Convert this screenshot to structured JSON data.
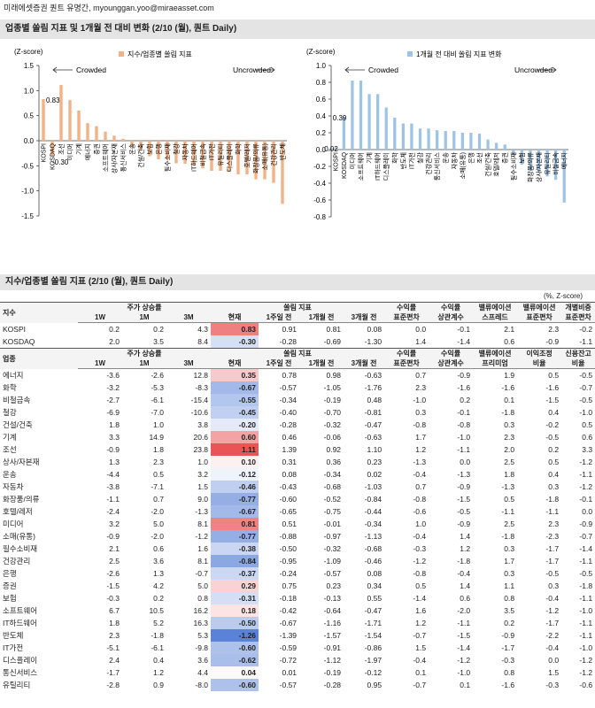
{
  "header": {
    "text": "미래에셋증권 퀀트 유명간, myounggan.yoo@miraeasset.com"
  },
  "sections": [
    {
      "title": "업종별 쏠림 지표 및 1개월 전 대비 변화 (2/10 (월), 퀀트 Daily)"
    },
    {
      "title": "지수/업종별 쏠림 지표 (2/10 (월), 퀀트 Daily)",
      "note": "(%, Z-score)"
    }
  ],
  "chart_data": [
    {
      "type": "bar",
      "ylabel": "(Z-score)",
      "legend": "지수/업종별 쏠림 지표",
      "annotations": [
        "Crowded",
        "Uncrowded"
      ],
      "categories": [
        "KOSPI",
        "KOSDAQ",
        "조선",
        "미디어",
        "기계",
        "에너지",
        "증권",
        "소프트웨어",
        "상사/자본재",
        "통신서비스",
        "운송",
        "건설/건축",
        "보험",
        "은행",
        "필수소비재",
        "철강",
        "자동차",
        "IT하드웨어",
        "비철금속",
        "IT가전",
        "유틸리티",
        "디스플레이",
        "화학",
        "호텔/레저",
        "화장품/의류",
        "소매(유통)",
        "건강관리",
        "반도체"
      ],
      "values": [
        0.83,
        -0.3,
        1.11,
        0.81,
        0.6,
        0.35,
        0.29,
        0.18,
        0.1,
        0.04,
        -0.12,
        -0.2,
        -0.31,
        -0.37,
        -0.38,
        -0.45,
        -0.46,
        -0.5,
        -0.55,
        -0.6,
        -0.6,
        -0.62,
        -0.67,
        -0.67,
        -0.77,
        -0.77,
        -0.84,
        -1.26
      ],
      "value_labels": [
        "0.83",
        "-0.30",
        null,
        null,
        null,
        null,
        null,
        null,
        null,
        null,
        null,
        null,
        null,
        null,
        null,
        null,
        null,
        null,
        null,
        null,
        null,
        null,
        null,
        null,
        null,
        null,
        null,
        null
      ],
      "color": "#f4b183",
      "ylim": [
        -1.5,
        1.5
      ],
      "yticks": [
        1.5,
        {
          "value": 1.0,
          "label": "1.0"
        },
        0.5,
        {
          "value": 0.0,
          "label": "0.0"
        },
        -0.5,
        {
          "value": -1.0,
          "label": "-1.0"
        },
        -1.5
      ]
    },
    {
      "type": "bar",
      "ylabel": "(Z-score)",
      "legend": "1개월 전 대비 쏠림 지표 변화",
      "annotations": [
        "Crowded",
        "Uncrowded"
      ],
      "categories": [
        "KOSPI",
        "KOSDAQ",
        "미디어",
        "소프트웨어",
        "기계",
        "IT하드웨어",
        "디스플레이",
        "화학",
        "반도체",
        "IT가전",
        "철강",
        "건강관리",
        "통신서비스",
        "운송",
        "자동차",
        "소매(유통)",
        "은행",
        "조선",
        "건설/건축",
        "호텔/레저",
        "증권",
        "필수소비재",
        "보험",
        "화장품/의류",
        "상사/자본재",
        "유틸리티",
        "비철금속",
        "에너지"
      ],
      "values": [
        0.02,
        0.39,
        0.82,
        0.82,
        0.66,
        0.66,
        0.5,
        0.38,
        0.31,
        0.31,
        0.25,
        0.25,
        0.23,
        0.22,
        0.22,
        0.2,
        0.2,
        0.19,
        0.12,
        0.08,
        0.06,
        -0.06,
        -0.18,
        -0.25,
        -0.26,
        -0.32,
        -0.36,
        -0.63
      ],
      "value_labels": [
        "0.02",
        "0.39",
        null,
        null,
        null,
        null,
        null,
        null,
        null,
        null,
        null,
        null,
        null,
        null,
        null,
        null,
        null,
        null,
        null,
        null,
        null,
        null,
        null,
        null,
        null,
        null,
        null,
        null
      ],
      "color": "#9dc3e6",
      "ylim": [
        -0.8,
        1.0
      ],
      "yticks": [
        {
          "value": 1.0,
          "label": "1.0"
        },
        0.8,
        0.6,
        0.4,
        0.2,
        {
          "value": 0.0,
          "label": "0.0"
        },
        -0.2,
        -0.4,
        -0.6,
        -0.8
      ]
    }
  ],
  "table": {
    "index_header": {
      "label": "지수",
      "groups": [
        {
          "title": "주가 상승률",
          "cols": [
            "1W",
            "1M",
            "3M"
          ]
        },
        {
          "title": "쏠림 지표",
          "cols": [
            "현재",
            "1주일 전",
            "1개월 전",
            "3개월 전"
          ]
        }
      ],
      "extra": [
        [
          "수익률",
          "표준편차"
        ],
        [
          "수익률",
          "상관계수"
        ],
        [
          "밸류에이션",
          "스프레드"
        ],
        [
          "밸류에이션",
          "표준편차"
        ],
        [
          "개별비중",
          "표준편차"
        ]
      ]
    },
    "index_rows": [
      [
        "KOSPI",
        "0.2",
        "0.2",
        "4.3",
        "0.83",
        "0.91",
        "0.81",
        "0.08",
        "0.0",
        "-0.1",
        "2.1",
        "2.3",
        "-0.2"
      ],
      [
        "KOSDAQ",
        "2.0",
        "3.5",
        "8.4",
        "-0.30",
        "-0.28",
        "-0.69",
        "-1.30",
        "1.4",
        "-1.4",
        "0.6",
        "-0.9",
        "-1.1"
      ]
    ],
    "sector_header": {
      "label": "업종",
      "groups": [
        {
          "title": "주가 상승률",
          "cols": [
            "1W",
            "1M",
            "3M"
          ]
        },
        {
          "title": "쏠림 지표",
          "cols": [
            "현재",
            "1주일 전",
            "1개월 전",
            "3개월 전"
          ]
        }
      ],
      "extra": [
        [
          "수익률",
          "표준편차"
        ],
        [
          "수익률",
          "상관계수"
        ],
        [
          "밸류에이션",
          "프리미엄"
        ],
        [
          "이익조정",
          "비율"
        ],
        [
          "신용잔고",
          "비율"
        ]
      ]
    },
    "sector_rows": [
      [
        "에너지",
        "-3.6",
        "-2.6",
        "12.8",
        "0.35",
        "0.78",
        "0.98",
        "-0.63",
        "0.7",
        "-0.9",
        "1.9",
        "0.5",
        "-0.5"
      ],
      [
        "화학",
        "-3.2",
        "-5.3",
        "-8.3",
        "-0.67",
        "-0.57",
        "-1.05",
        "-1.76",
        "2.3",
        "-1.6",
        "-1.6",
        "-1.6",
        "-0.7"
      ],
      [
        "비철금속",
        "-2.7",
        "-6.1",
        "-15.4",
        "-0.55",
        "-0.34",
        "-0.19",
        "0.48",
        "-1.0",
        "0.2",
        "0.1",
        "-1.5",
        "-0.5"
      ],
      [
        "철강",
        "-6.9",
        "-7.0",
        "-10.6",
        "-0.45",
        "-0.40",
        "-0.70",
        "-0.81",
        "0.3",
        "-0.1",
        "-1.8",
        "0.4",
        "-1.0"
      ],
      [
        "건설/건축",
        "1.8",
        "1.0",
        "3.8",
        "-0.20",
        "-0.28",
        "-0.32",
        "-0.47",
        "-0.8",
        "-0.8",
        "0.3",
        "-0.2",
        "0.5"
      ],
      [
        "기계",
        "3.3",
        "14.9",
        "20.6",
        "0.60",
        "0.46",
        "-0.06",
        "-0.63",
        "1.7",
        "-1.0",
        "2.3",
        "-0.5",
        "0.6"
      ],
      [
        "조선",
        "-0.9",
        "1.8",
        "23.8",
        "1.11",
        "1.39",
        "0.92",
        "1.10",
        "1.2",
        "-1.1",
        "2.0",
        "0.2",
        "3.3"
      ],
      [
        "상사/자본재",
        "1.3",
        "2.3",
        "1.0",
        "0.10",
        "0.31",
        "0.36",
        "0.23",
        "-1.3",
        "0.0",
        "2.5",
        "0.5",
        "-1.2"
      ],
      [
        "운송",
        "-4.4",
        "0.5",
        "3.2",
        "-0.12",
        "0.08",
        "-0.34",
        "0.02",
        "-0.4",
        "-1.3",
        "1.8",
        "0.4",
        "-1.1"
      ],
      [
        "자동차",
        "-3.8",
        "-7.1",
        "1.5",
        "-0.46",
        "-0.43",
        "-0.68",
        "-1.03",
        "0.7",
        "-0.9",
        "-1.3",
        "0.3",
        "-1.2"
      ],
      [
        "화장품/의류",
        "-1.1",
        "0.7",
        "9.0",
        "-0.77",
        "-0.60",
        "-0.52",
        "-0.84",
        "-0.8",
        "-1.5",
        "0.5",
        "-1.8",
        "-0.1"
      ],
      [
        "호텔/레저",
        "-2.4",
        "-2.0",
        "-1.3",
        "-0.67",
        "-0.65",
        "-0.75",
        "-0.44",
        "-0.6",
        "-0.5",
        "-1.1",
        "-1.1",
        "0.0"
      ],
      [
        "미디어",
        "3.2",
        "5.0",
        "8.1",
        "0.81",
        "0.51",
        "-0.01",
        "-0.34",
        "1.0",
        "-0.9",
        "2.5",
        "2.3",
        "-0.9"
      ],
      [
        "소매(유통)",
        "-0.9",
        "-2.0",
        "-1.2",
        "-0.77",
        "-0.88",
        "-0.97",
        "-1.13",
        "-0.4",
        "1.4",
        "-1.8",
        "-2.3",
        "-0.7"
      ],
      [
        "필수소비재",
        "2.1",
        "0.6",
        "1.6",
        "-0.38",
        "-0.50",
        "-0.32",
        "-0.68",
        "-0.3",
        "1.2",
        "0.3",
        "-1.7",
        "-1.4"
      ],
      [
        "건강관리",
        "2.5",
        "3.6",
        "8.1",
        "-0.84",
        "-0.95",
        "-1.09",
        "-0.46",
        "-1.2",
        "-1.8",
        "1.7",
        "-1.7",
        "-1.1"
      ],
      [
        "은행",
        "-2.6",
        "1.3",
        "-0.7",
        "-0.37",
        "-0.24",
        "-0.57",
        "0.08",
        "-0.8",
        "-0.4",
        "0.3",
        "-0.5",
        "-0.5"
      ],
      [
        "증권",
        "-1.5",
        "4.2",
        "5.0",
        "0.29",
        "0.75",
        "0.23",
        "0.34",
        "0.5",
        "1.4",
        "1.1",
        "0.3",
        "-1.8"
      ],
      [
        "보험",
        "-0.3",
        "0.2",
        "0.8",
        "-0.31",
        "-0.18",
        "-0.13",
        "0.55",
        "-1.4",
        "0.6",
        "0.8",
        "-0.4",
        "-1.1"
      ],
      [
        "소프트웨어",
        "6.7",
        "10.5",
        "16.2",
        "0.18",
        "-0.42",
        "-0.64",
        "-0.47",
        "1.6",
        "-2.0",
        "3.5",
        "-1.2",
        "-1.0"
      ],
      [
        "IT하드웨어",
        "1.8",
        "5.2",
        "16.3",
        "-0.50",
        "-0.67",
        "-1.16",
        "-1.71",
        "1.2",
        "-1.1",
        "0.2",
        "-1.7",
        "-1.1"
      ],
      [
        "반도체",
        "2.3",
        "-1.8",
        "5.3",
        "-1.26",
        "-1.39",
        "-1.57",
        "-1.54",
        "-0.7",
        "-1.5",
        "-0.9",
        "-2.2",
        "-1.1"
      ],
      [
        "IT가전",
        "-5.1",
        "-6.1",
        "-9.8",
        "-0.60",
        "-0.59",
        "-0.91",
        "-0.86",
        "1.5",
        "-1.4",
        "-1.7",
        "-0.4",
        "-1.0"
      ],
      [
        "디스플레이",
        "2.4",
        "0.4",
        "3.6",
        "-0.62",
        "-0.72",
        "-1.12",
        "-1.97",
        "-0.4",
        "-1.2",
        "-0.3",
        "0.0",
        "-1.2"
      ],
      [
        "통신서비스",
        "-1.7",
        "1.2",
        "4.4",
        "0.04",
        "0.01",
        "-0.19",
        "-0.12",
        "0.1",
        "-1.0",
        "0.8",
        "1.5",
        "-1.2"
      ],
      [
        "유틸리티",
        "-2.8",
        "0.9",
        "-8.0",
        "-0.60",
        "-0.57",
        "-0.28",
        "0.95",
        "-0.7",
        "0.1",
        "-1.6",
        "-0.3",
        "-0.6"
      ]
    ]
  }
}
